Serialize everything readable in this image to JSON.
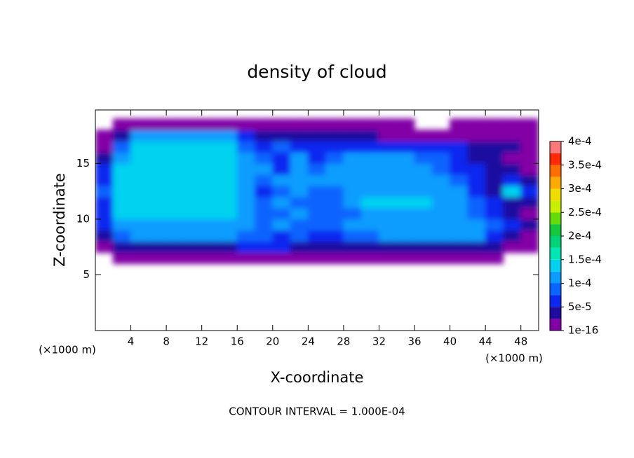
{
  "chart_data": {
    "type": "contourf",
    "title": "density of cloud",
    "x_label": "X-coordinate",
    "y_label": "Z-coordinate",
    "x_unit_label": "(×1000 m)",
    "y_unit_label": "(×1000 m)",
    "footer": "CONTOUR INTERVAL = 1.000E-04",
    "xlim": [
      0,
      50
    ],
    "ylim": [
      0,
      19.8
    ],
    "xticks": [
      4,
      8,
      12,
      16,
      20,
      24,
      28,
      32,
      36,
      40,
      44,
      48
    ],
    "yticks": [
      5,
      10,
      15
    ],
    "x": [
      1,
      3,
      5,
      7,
      9,
      11,
      13,
      15,
      17,
      19,
      21,
      23,
      25,
      27,
      29,
      31,
      33,
      35,
      37,
      39,
      41,
      43,
      45,
      47,
      49
    ],
    "y": [
      6.5,
      7.5,
      8.5,
      9.5,
      10.5,
      11.5,
      12.5,
      13.5,
      14.5,
      15.5,
      16.5,
      17.5,
      18.5
    ],
    "z": [
      [
        null,
        1e-05,
        1e-05,
        1e-05,
        1e-05,
        1e-05,
        1e-05,
        1e-05,
        1e-05,
        1e-05,
        1e-05,
        1e-05,
        1e-05,
        1e-05,
        1e-05,
        1e-05,
        1e-05,
        1e-05,
        1e-05,
        1e-05,
        1e-05,
        1e-05,
        1e-05,
        null,
        null
      ],
      [
        2e-05,
        4e-05,
        4e-05,
        4e-05,
        4e-05,
        4e-05,
        4e-05,
        4e-05,
        5e-05,
        5e-05,
        5e-05,
        4e-05,
        3e-05,
        4e-05,
        4e-05,
        4e-05,
        4e-05,
        4e-05,
        4e-05,
        4e-05,
        4e-05,
        4e-05,
        3e-05,
        2e-05,
        1e-05
      ],
      [
        4e-05,
        9e-05,
        0.0001,
        0.0001,
        0.0001,
        0.0001,
        0.0001,
        0.0001,
        9e-05,
        8e-05,
        7e-05,
        8e-05,
        7e-05,
        7e-05,
        8e-05,
        8e-05,
        0.0001,
        0.0001,
        0.0001,
        0.0001,
        0.0001,
        0.0001,
        6e-05,
        3e-05,
        2e-05
      ],
      [
        6e-05,
        0.000115,
        0.000115,
        0.000115,
        0.000115,
        0.000115,
        0.000115,
        0.000115,
        0.0001,
        9e-05,
        0.0001,
        9e-05,
        8e-05,
        9e-05,
        0.0001,
        0.000105,
        0.000105,
        0.000105,
        0.000105,
        0.000105,
        0.000105,
        0.0001,
        8e-05,
        5e-05,
        4e-05
      ],
      [
        5e-05,
        0.000125,
        0.000125,
        0.000125,
        0.000125,
        0.000125,
        0.000125,
        0.000125,
        0.000105,
        9e-05,
        8e-05,
        0.000105,
        9e-05,
        8e-05,
        9e-05,
        0.000115,
        0.000115,
        0.000115,
        0.000115,
        0.00011,
        0.000105,
        9e-05,
        6e-05,
        4e-05,
        2e-05
      ],
      [
        6e-05,
        0.00013,
        0.00013,
        0.00013,
        0.00013,
        0.00013,
        0.00013,
        0.00013,
        0.0001,
        8e-05,
        0.0001,
        9e-05,
        8e-05,
        9e-05,
        0.000105,
        0.000125,
        0.000125,
        0.000125,
        0.000125,
        0.000115,
        0.000105,
        9e-05,
        6e-05,
        4e-05,
        3e-05
      ],
      [
        8e-05,
        0.000135,
        0.00014,
        0.00014,
        0.00014,
        0.00014,
        0.00014,
        0.00014,
        0.00011,
        7e-05,
        9e-05,
        0.000105,
        9e-05,
        8e-05,
        0.0001,
        0.000115,
        0.00012,
        0.00012,
        0.000115,
        0.00011,
        0.0001,
        7e-05,
        4e-05,
        0.000135,
        6e-05
      ],
      [
        7e-05,
        0.000135,
        0.000145,
        0.000145,
        0.000145,
        0.000145,
        0.000145,
        0.000145,
        0.00012,
        8e-05,
        0.0001,
        0.000105,
        0.0001,
        0.000105,
        0.0001,
        0.0001,
        0.000105,
        0.00011,
        0.00011,
        0.000105,
        9e-05,
        6e-05,
        4e-05,
        5e-05,
        3e-05
      ],
      [
        6e-05,
        0.00013,
        0.000145,
        0.000145,
        0.000145,
        0.000145,
        0.000145,
        0.000145,
        0.00011,
        0.0001,
        6e-05,
        0.00011,
        9e-05,
        0.000105,
        0.00011,
        0.00011,
        0.00011,
        0.000105,
        0.0001,
        9e-05,
        7e-05,
        5e-05,
        4e-05,
        3e-05,
        2e-05
      ],
      [
        4e-05,
        0.00011,
        0.00014,
        0.00014,
        0.00014,
        0.00014,
        0.00014,
        0.00014,
        0.0001,
        8e-05,
        7e-05,
        0.00011,
        7e-05,
        8e-05,
        0.0001,
        0.000105,
        0.000105,
        0.0001,
        9e-05,
        8e-05,
        6e-05,
        4e-05,
        3e-05,
        2e-05,
        2e-05
      ],
      [
        2e-05,
        8e-05,
        0.000135,
        0.000135,
        0.000135,
        0.000135,
        0.000135,
        0.000135,
        9e-05,
        6e-05,
        8e-05,
        7e-05,
        5e-05,
        5e-05,
        6e-05,
        6e-05,
        5e-05,
        5e-05,
        5e-05,
        5e-05,
        5e-05,
        3e-05,
        3e-05,
        3e-05,
        1e-05
      ],
      [
        1e-05,
        3e-05,
        0.00012,
        0.00012,
        0.00012,
        0.00012,
        0.00012,
        0.00012,
        6e-05,
        4e-05,
        4e-05,
        4e-05,
        3e-05,
        3e-05,
        3e-05,
        3e-05,
        2e-05,
        2e-05,
        2e-05,
        2e-05,
        2e-05,
        2e-05,
        2e-05,
        2e-05,
        1e-05
      ],
      [
        null,
        1e-05,
        1e-05,
        1e-05,
        1e-05,
        1e-05,
        1e-05,
        1e-05,
        1e-05,
        1e-05,
        1e-05,
        1e-05,
        1e-05,
        1e-05,
        1e-05,
        1e-05,
        1e-05,
        1e-05,
        null,
        null,
        1e-05,
        1e-05,
        1e-05,
        1e-05,
        1e-05
      ]
    ],
    "colorbar": {
      "levels": [
        1e-16,
        2.5e-05,
        5e-05,
        7.5e-05,
        0.0001,
        0.000125,
        0.00015,
        0.000175,
        0.0002,
        0.000225,
        0.00025,
        0.000275,
        0.0003,
        0.000325,
        0.00035,
        0.000375,
        0.0004
      ],
      "colors": [
        "#8200a6",
        "#1e0ca0",
        "#0a28f0",
        "#0a64ff",
        "#0a9cff",
        "#00d2f0",
        "#00e6b4",
        "#00d278",
        "#14c83c",
        "#64dc0a",
        "#c8f000",
        "#f0dc00",
        "#ffaa00",
        "#ff6e00",
        "#ff2800",
        "#ff7878"
      ],
      "ticks": [
        1e-16,
        {
          "value": 5e-05,
          "label": "5e-5"
        },
        {
          "value": 0.0001,
          "label": "1e-4"
        },
        {
          "value": 0.00015,
          "label": "1.5e-4"
        },
        {
          "value": 0.0002,
          "label": "2e-4"
        },
        {
          "value": 0.00025,
          "label": "2.5e-4"
        },
        {
          "value": 0.0003,
          "label": "3e-4"
        },
        {
          "value": 0.00035,
          "label": "3.5e-4"
        },
        {
          "value": 0.0004,
          "label": "4e-4"
        }
      ]
    }
  }
}
